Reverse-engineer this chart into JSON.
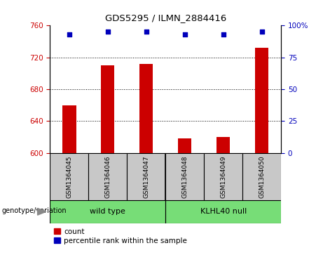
{
  "title": "GDS5295 / ILMN_2884416",
  "samples": [
    "GSM1364045",
    "GSM1364046",
    "GSM1364047",
    "GSM1364048",
    "GSM1364049",
    "GSM1364050"
  ],
  "counts": [
    660,
    710,
    712,
    618,
    620,
    732
  ],
  "percentile_ranks": [
    93,
    95,
    95,
    93,
    93,
    95
  ],
  "ylim_left": [
    600,
    760
  ],
  "ylim_right": [
    0,
    100
  ],
  "yticks_left": [
    600,
    640,
    680,
    720,
    760
  ],
  "yticks_right": [
    0,
    25,
    50,
    75,
    100
  ],
  "groups": [
    {
      "label": "wild type",
      "color": "#77DD77"
    },
    {
      "label": "KLHL40 null",
      "color": "#77DD77"
    }
  ],
  "bar_color": "#CC0000",
  "dot_color": "#0000BB",
  "left_tick_color": "#CC0000",
  "right_tick_color": "#0000BB",
  "grid_color": "black",
  "sample_bg_color": "#C8C8C8",
  "plot_bg": "white",
  "legend_red_label": "count",
  "legend_blue_label": "percentile rank within the sample",
  "group_label": "genotype/variation"
}
